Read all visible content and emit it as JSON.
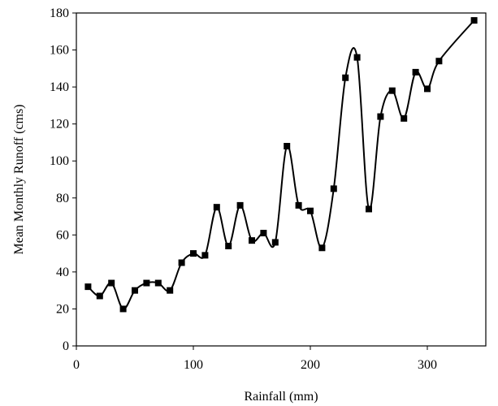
{
  "chart_data": {
    "type": "line",
    "title": "",
    "xlabel": "Rainfall (mm)",
    "ylabel": "Mean Monthly Runoff (cms)",
    "xlim": [
      0,
      350
    ],
    "ylim": [
      0,
      180
    ],
    "x_ticks": [
      0,
      100,
      200,
      300
    ],
    "y_ticks": [
      0,
      20,
      40,
      60,
      80,
      100,
      120,
      140,
      160,
      180
    ],
    "grid": false,
    "legend": "none",
    "line_style": "smooth",
    "marker": "square",
    "colors": {
      "line": "#000000",
      "marker": "#000000",
      "axis": "#000000"
    },
    "series": [
      {
        "x": [
          10,
          20,
          30,
          40,
          50,
          60,
          70,
          80,
          90,
          100,
          110,
          120,
          130,
          140,
          150,
          160,
          170,
          180,
          190,
          200,
          210,
          220,
          230,
          240,
          250,
          260,
          270,
          280,
          290,
          300,
          310,
          340
        ],
        "values": [
          32,
          27,
          34,
          20,
          30,
          34,
          34,
          30,
          45,
          50,
          49,
          75,
          54,
          76,
          57,
          61,
          56,
          108,
          76,
          73,
          53,
          85,
          145,
          156,
          74,
          124,
          138,
          123,
          148,
          139,
          154,
          176
        ]
      }
    ]
  }
}
